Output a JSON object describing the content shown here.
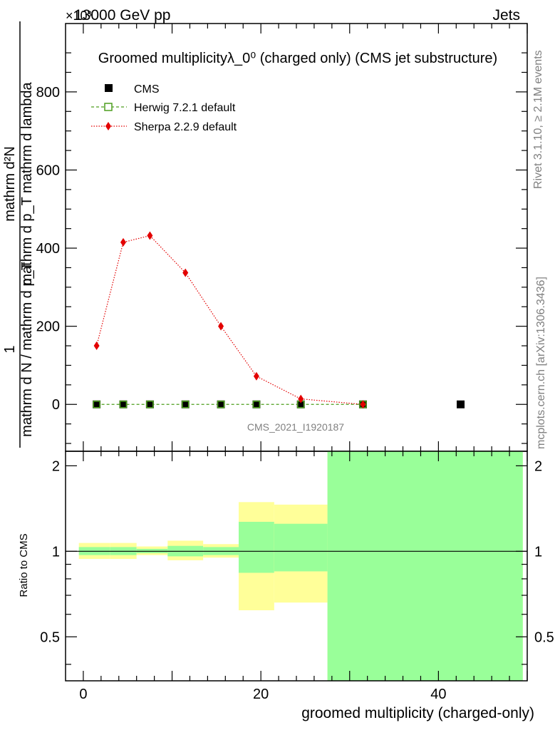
{
  "header": {
    "energy_label": "13000 GeV pp",
    "category_label": "Jets",
    "exponent_label": "×10³"
  },
  "side_labels": {
    "rivet": "Rivet 3.1.10, ≥ 2.1M events",
    "mcplots": "mcplots.cern.ch [arXiv:1306.3436]"
  },
  "chart_data": [
    {
      "type": "line",
      "title": "Groomed multiplicityλ_0⁰ (charged only) (CMS jet substructure)",
      "ylabel_numerator": "mathrm d²N",
      "ylabel_denominator": "mathrm d p_T mathrm d lambda",
      "ylabel_prefix_numerator": "1",
      "ylabel_prefix_denominator": "mathrm d N / mathrm d p_T",
      "watermark": "CMS_2021_I1920187",
      "xlim": [
        -2,
        50
      ],
      "ylim": [
        -120,
        975
      ],
      "y_ticks": [
        0,
        200,
        400,
        600,
        800
      ],
      "legend_position": "top-left",
      "series": [
        {
          "name": "CMS",
          "color": "#000000",
          "marker": "square",
          "x": [
            1.5,
            4.5,
            7.5,
            11.5,
            15.5,
            19.5,
            24.5,
            31.5,
            42.5
          ],
          "y": [
            0,
            0,
            0,
            0,
            0,
            0,
            0,
            0,
            0
          ]
        },
        {
          "name": "Herwig 7.2.1 default",
          "color": "#4d9e1f",
          "marker": "open-square",
          "line": "dashed",
          "x": [
            1.5,
            4.5,
            7.5,
            11.5,
            15.5,
            19.5,
            24.5,
            31.5
          ],
          "y": [
            0,
            0,
            0,
            0,
            0,
            0,
            0,
            0
          ]
        },
        {
          "name": "Sherpa 2.2.9 default",
          "color": "#e30000",
          "marker": "diamond",
          "line": "dotted",
          "x": [
            1.5,
            4.5,
            7.5,
            11.5,
            15.5,
            19.5,
            24.5,
            31.5
          ],
          "y": [
            150,
            415,
            432,
            337,
            200,
            72,
            14,
            0
          ]
        }
      ]
    },
    {
      "type": "area",
      "title": "",
      "ylabel": "Ratio to CMS",
      "xlabel": "groomed multiplicity (charged-only)",
      "xlim": [
        -2,
        50
      ],
      "ylim": [
        0.35,
        2.25
      ],
      "y_ticks": [
        0.5,
        1,
        2
      ],
      "x_ticks": [
        0,
        20,
        40
      ],
      "reference_line": 1,
      "bands": [
        {
          "x0": -0.5,
          "x1": 3,
          "yellow": [
            0.94,
            1.07
          ],
          "green": [
            0.97,
            1.035
          ]
        },
        {
          "x0": 3,
          "x1": 6,
          "yellow": [
            0.94,
            1.07
          ],
          "green": [
            0.97,
            1.035
          ]
        },
        {
          "x0": 6,
          "x1": 9.5,
          "yellow": [
            0.97,
            1.04
          ],
          "green": [
            0.985,
            1.02
          ]
        },
        {
          "x0": 9.5,
          "x1": 13.5,
          "yellow": [
            0.93,
            1.09
          ],
          "green": [
            0.96,
            1.045
          ]
        },
        {
          "x0": 13.5,
          "x1": 17.5,
          "yellow": [
            0.95,
            1.06
          ],
          "green": [
            0.97,
            1.035
          ]
        },
        {
          "x0": 17.5,
          "x1": 21.5,
          "yellow": [
            0.62,
            1.49
          ],
          "green": [
            0.84,
            1.27
          ]
        },
        {
          "x0": 21.5,
          "x1": 27.5,
          "yellow": [
            0.66,
            1.46
          ],
          "green": [
            0.85,
            1.25
          ]
        },
        {
          "x0": 27.5,
          "x1": 49.5,
          "yellow": [
            0.35,
            2.25
          ],
          "green": [
            0.35,
            2.25
          ]
        }
      ]
    }
  ]
}
